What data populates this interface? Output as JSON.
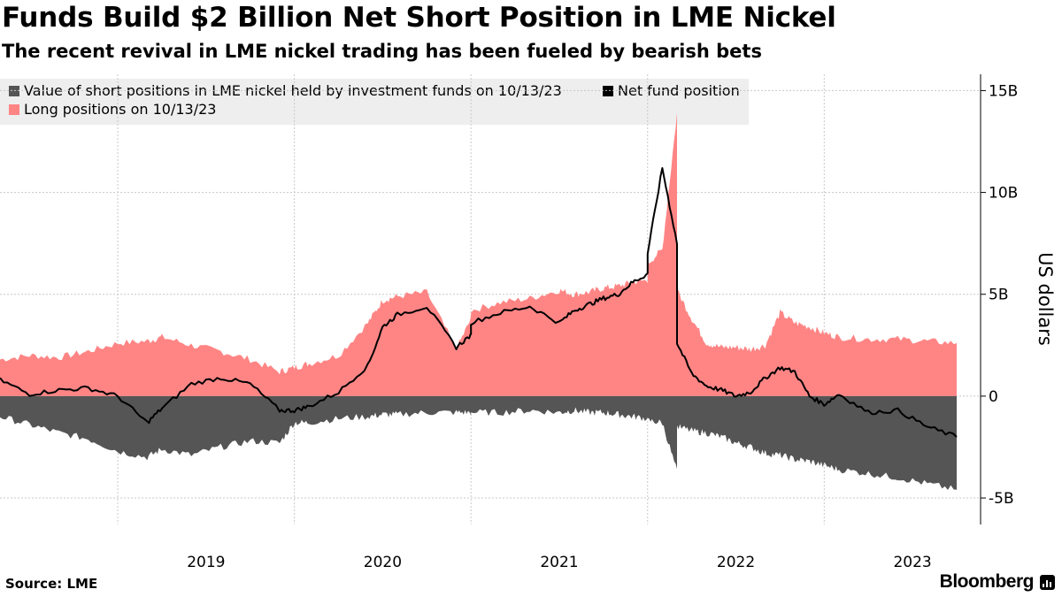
{
  "title": "Funds Build $2 Billion Net Short Position in LME Nickel",
  "subtitle": "The recent revival in LME nickel trading has been fueled by bearish bets",
  "source": "Source: LME",
  "brand": "Bloomberg",
  "chart_data": {
    "type": "area",
    "ylabel": "US dollars",
    "ylim": [
      -6.3,
      15.8
    ],
    "y_ticks": [
      "15B",
      "10B",
      "5B",
      "0",
      "-5B"
    ],
    "y_tick_values": [
      15,
      10,
      5,
      0,
      -5
    ],
    "x_ticks": [
      "2019",
      "2020",
      "2021",
      "2022",
      "2023"
    ],
    "x_range": [
      "2018-05",
      "2023-10"
    ],
    "grid": true,
    "legend_position": "top-left",
    "legend": [
      {
        "label": "Value of short positions in LME nickel held by investment funds on 10/13/23",
        "color": "#555555"
      },
      {
        "label": "Net fund position",
        "color": "#000000"
      },
      {
        "label": "Long positions on 10/13/23",
        "color": "#ff8585"
      }
    ],
    "series": [
      {
        "name": "Long positions on 10/13/23",
        "color": "#ff8585",
        "x": [
          "2018-05",
          "2018-07",
          "2018-09",
          "2018-11",
          "2019-01",
          "2019-03",
          "2019-04",
          "2019-06",
          "2019-08",
          "2019-10",
          "2019-12",
          "2020-01",
          "2020-02",
          "2020-04",
          "2020-06",
          "2020-07",
          "2020-08",
          "2020-10",
          "2020-12",
          "2021-01",
          "2021-01",
          "2021-03",
          "2021-05",
          "2021-07",
          "2021-08",
          "2021-09",
          "2021-10",
          "2021-11",
          "2021-12",
          "2022-01",
          "2022-01",
          "2022-02",
          "2022-03",
          "2022-03",
          "2022-03",
          "2022-03",
          "2022-04",
          "2022-05",
          "2022-06",
          "2022-07",
          "2022-08",
          "2022-09",
          "2022-10",
          "2022-11",
          "2022-12",
          "2023-01",
          "2023-02",
          "2023-04",
          "2023-06",
          "2023-08",
          "2023-10"
        ],
        "values": [
          1.8,
          2.0,
          1.9,
          2.2,
          2.6,
          2.7,
          2.9,
          2.5,
          2.2,
          1.8,
          1.2,
          1.4,
          1.6,
          2.0,
          3.6,
          4.7,
          4.9,
          5.1,
          2.3,
          3.8,
          4.2,
          4.6,
          4.8,
          5.2,
          5.0,
          5.1,
          5.3,
          5.4,
          5.6,
          5.7,
          6.5,
          7.2,
          13.9,
          7.5,
          6.2,
          5.2,
          3.8,
          2.6,
          2.4,
          2.4,
          2.3,
          2.5,
          4.1,
          3.6,
          3.4,
          3.1,
          2.9,
          2.8,
          2.8,
          2.7,
          2.6
        ]
      },
      {
        "name": "Value of short positions in LME nickel held by investment funds on 10/13/23",
        "color": "#555555",
        "x": [
          "2018-05",
          "2018-07",
          "2018-09",
          "2018-11",
          "2019-01",
          "2019-03",
          "2019-04",
          "2019-06",
          "2019-08",
          "2019-10",
          "2019-12",
          "2020-01",
          "2020-02",
          "2020-04",
          "2020-06",
          "2020-07",
          "2020-08",
          "2020-10",
          "2020-12",
          "2021-01",
          "2021-01",
          "2021-03",
          "2021-05",
          "2021-07",
          "2021-08",
          "2021-09",
          "2021-10",
          "2021-11",
          "2021-12",
          "2022-01",
          "2022-01",
          "2022-02",
          "2022-03",
          "2022-03",
          "2022-03",
          "2022-03",
          "2022-04",
          "2022-05",
          "2022-06",
          "2022-07",
          "2022-08",
          "2022-09",
          "2022-10",
          "2022-11",
          "2022-12",
          "2023-01",
          "2023-02",
          "2023-04",
          "2023-06",
          "2023-08",
          "2023-10"
        ],
        "values": [
          -1.0,
          -1.4,
          -1.8,
          -2.1,
          -2.7,
          -3.0,
          -2.6,
          -2.9,
          -2.5,
          -2.2,
          -2.3,
          -1.3,
          -1.3,
          -1.1,
          -1.0,
          -0.9,
          -0.9,
          -0.8,
          -0.8,
          -0.8,
          -0.8,
          -0.8,
          -0.7,
          -0.8,
          -0.7,
          -0.8,
          -0.8,
          -0.9,
          -1.0,
          -1.1,
          -1.2,
          -1.3,
          -3.7,
          -1.5,
          -1.4,
          -1.5,
          -1.7,
          -1.8,
          -2.0,
          -2.3,
          -2.5,
          -2.8,
          -2.9,
          -3.1,
          -3.2,
          -3.4,
          -3.6,
          -3.8,
          -4.0,
          -4.3,
          -4.6
        ]
      },
      {
        "name": "Net fund position",
        "color": "#000000",
        "x": [
          "2018-05",
          "2018-07",
          "2018-09",
          "2018-11",
          "2019-01",
          "2019-03",
          "2019-04",
          "2019-06",
          "2019-08",
          "2019-10",
          "2019-12",
          "2020-01",
          "2020-02",
          "2020-04",
          "2020-06",
          "2020-07",
          "2020-08",
          "2020-10",
          "2020-12",
          "2021-01",
          "2021-01",
          "2021-03",
          "2021-05",
          "2021-07",
          "2021-08",
          "2021-09",
          "2021-10",
          "2021-11",
          "2021-12",
          "2022-01",
          "2022-01",
          "2022-02",
          "2022-03",
          "2022-03",
          "2022-03",
          "2022-03",
          "2022-04",
          "2022-05",
          "2022-06",
          "2022-07",
          "2022-08",
          "2022-09",
          "2022-10",
          "2022-11",
          "2022-12",
          "2023-01",
          "2023-02",
          "2023-04",
          "2023-06",
          "2023-08",
          "2023-10"
        ],
        "values": [
          0.8,
          0.1,
          0.3,
          0.4,
          0.0,
          -1.3,
          -0.6,
          0.6,
          0.9,
          0.6,
          -0.7,
          -0.7,
          -0.5,
          0.2,
          1.5,
          3.4,
          4.0,
          4.4,
          2.4,
          3.0,
          3.6,
          4.1,
          4.4,
          3.6,
          4.2,
          4.5,
          4.8,
          5.0,
          5.6,
          6.0,
          7.0,
          11.2,
          7.5,
          5.8,
          4.0,
          2.6,
          1.1,
          0.5,
          0.3,
          0.0,
          0.2,
          0.9,
          1.4,
          1.2,
          0.0,
          -0.4,
          0.1,
          -0.8,
          -0.7,
          -1.5,
          -2.0
        ]
      }
    ]
  }
}
